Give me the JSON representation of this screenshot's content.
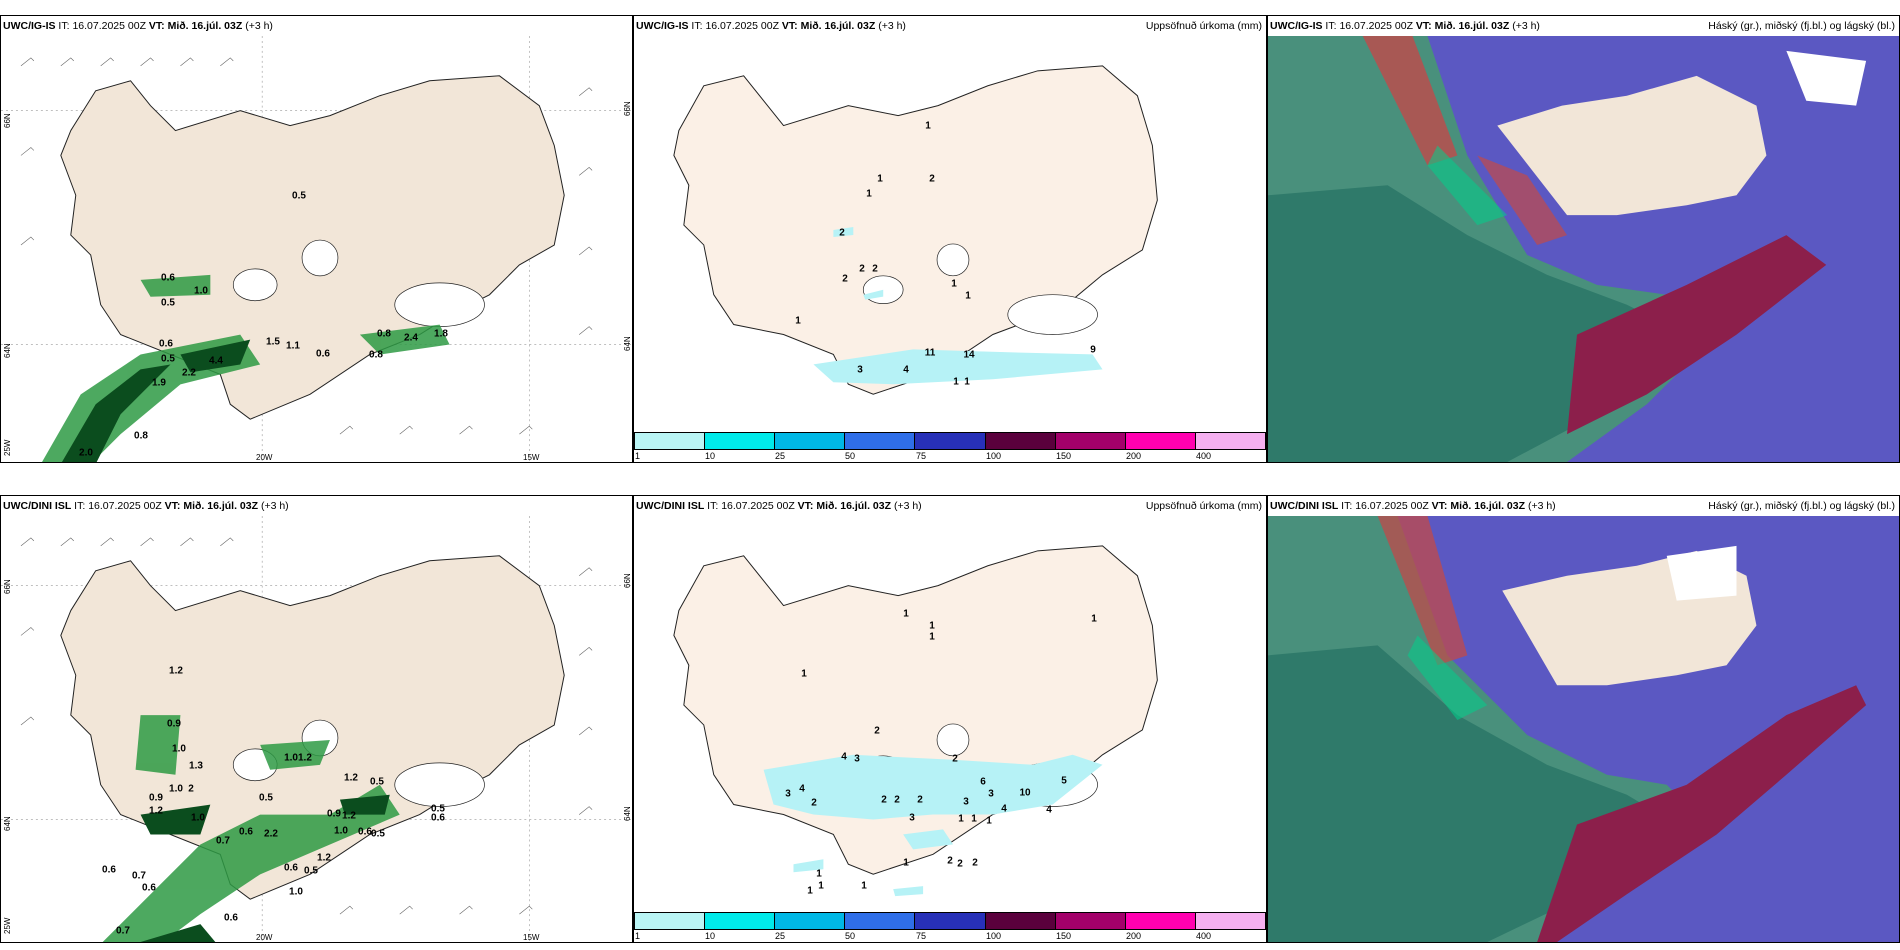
{
  "rows": [
    {
      "model": "UWC/IG-IS",
      "it_label": "IT:",
      "it_value": "16.07.2025 00Z",
      "vt_label": "VT:",
      "vt_value": "Mið. 16.júl. 03Z",
      "lead": "(+3 h)",
      "precip_title": "Uppsöfnuð úrkoma (mm)",
      "cloud_title": "Háský (gr.), miðský (fj.bl.) og lágský (bl.)",
      "wind_labels": [
        "0.5",
        "0.6",
        "0.5",
        "1.0",
        "0.6",
        "0.5",
        "2.2",
        "4.4",
        "1.5",
        "1.1",
        "0.6",
        "1.9",
        "0.8",
        "2.4",
        "1.8",
        "0.8",
        "2.0",
        "0.8"
      ],
      "precip_labels": [
        "1",
        "1",
        "1",
        "2",
        "2",
        "2",
        "2",
        "2",
        "1",
        "1",
        "1",
        "11",
        "14",
        "4",
        "3",
        "1",
        "1",
        "9"
      ]
    },
    {
      "model": "UWC/DINI ISL",
      "it_label": "IT:",
      "it_value": "16.07.2025 00Z",
      "vt_label": "VT:",
      "vt_value": "Mið. 16.júl. 03Z",
      "lead": "(+3 h)",
      "precip_title": "Uppsöfnuð úrkoma (mm)",
      "cloud_title": "Háský (gr.), miðský (fj.bl.) og lágský (bl.)",
      "wind_labels": [
        "1.2",
        "0.9",
        "1.0",
        "1.3",
        "1.0",
        "2",
        "0.9",
        "1.2",
        "1.0",
        "0.7",
        "1.01.2",
        "1.2",
        "0.5",
        "0.5",
        "0.6",
        "2.2",
        "0.9",
        "1.2",
        "1.0",
        "0.6",
        "0.5",
        "0.5",
        "0.6",
        "0.6",
        "0.5",
        "1.2",
        "1.0",
        "0.6",
        "0.7",
        "0.6",
        "0.7",
        "0.6"
      ],
      "precip_labels": [
        "1",
        "1",
        "1",
        "1",
        "1",
        "2",
        "4",
        "3",
        "2",
        "3",
        "4",
        "2",
        "2",
        "2",
        "2",
        "3",
        "6",
        "3",
        "10",
        "5",
        "4",
        "3",
        "4",
        "1",
        "1",
        "1",
        "1",
        "2",
        "2",
        "2",
        "1",
        "1",
        "1",
        "1"
      ]
    }
  ],
  "axes": {
    "lat_left_top": "66N",
    "lat_left_mid": "64N",
    "lat_left_bot": "25W",
    "lat_right_top": "66N",
    "lat_right_mid": "64N",
    "lon_a": "20W",
    "lon_b": "15W"
  },
  "legend": {
    "labels": [
      "1",
      "10",
      "25",
      "50",
      "75",
      "100",
      "150",
      "200",
      "400"
    ],
    "colors": [
      "#b9f5f5",
      "#00eaea",
      "#00b8e6",
      "#2f6ee8",
      "#2730b8",
      "#5a003c",
      "#a3006a",
      "#ff00b0",
      "#f5b0f0"
    ]
  },
  "colors": {
    "land": "#f2e6d8",
    "precip_land": "#fbf0e6",
    "green_dark": "#0b4d1e",
    "green_mid": "#2e9a44",
    "green_light": "#a9e6b0",
    "precip_cyan": "#b6f2f6",
    "cloud_blue": "#5b58c2",
    "cloud_red": "#8c1f4b",
    "cloud_teal": "#2f7a6a",
    "cloud_sea": "#49907c"
  }
}
